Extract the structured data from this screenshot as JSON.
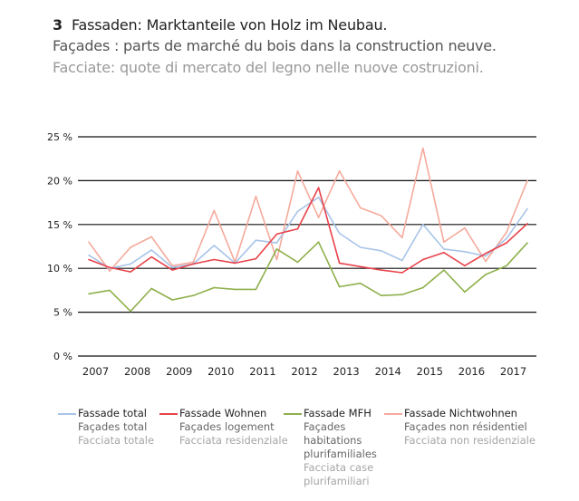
{
  "title": {
    "number": "3",
    "de": "Fassaden: Marktanteile von Holz im Neubau.",
    "fr": "Façades : parts de marché du bois dans la construction neuve.",
    "it": "Facciate: quote di mercato del legno nelle nuove costruzioni."
  },
  "chart_data": {
    "type": "line",
    "title": "Fassaden: Marktanteile von Holz im Neubau.",
    "xlabel": "",
    "ylabel": "",
    "x_tick_labels": [
      "2007",
      "2008",
      "2009",
      "2010",
      "2011",
      "2012",
      "2013",
      "2014",
      "2015",
      "2016",
      "2017"
    ],
    "x_note": "semiannual values, two per year (2007 H1 to 2017 H2)",
    "y_tick_labels": [
      "0 %",
      "5 %",
      "10 %",
      "15 %",
      "20 %",
      "25 %"
    ],
    "y_ticks": [
      0,
      5,
      10,
      15,
      20,
      25
    ],
    "ylim": [
      0,
      25
    ],
    "grid": true,
    "legend_position": "bottom",
    "series": [
      {
        "name": "Fassade total",
        "name_fr": "Façades total",
        "name_it": "Facciata totale",
        "color": "#a8c4e8",
        "values": [
          11.5,
          10.0,
          10.5,
          12.1,
          10.1,
          10.5,
          12.6,
          10.6,
          13.2,
          12.9,
          16.5,
          18.1,
          14.0,
          12.4,
          12.0,
          10.9,
          15.0,
          12.2,
          11.9,
          11.4,
          13.4,
          16.8
        ]
      },
      {
        "name": "Fassade Wohnen",
        "name_fr": "Façades logement",
        "name_it": "Facciata residenziale",
        "color": "#e8424a",
        "values": [
          11.0,
          10.1,
          9.6,
          11.3,
          9.8,
          10.5,
          11.0,
          10.6,
          11.1,
          13.9,
          14.5,
          19.2,
          10.6,
          10.2,
          9.8,
          9.5,
          11.0,
          11.8,
          10.3,
          11.7,
          12.9,
          15.1
        ]
      },
      {
        "name": "Fassade MFH",
        "name_fr": "Façades habitations plurifamiliales",
        "name_it": "Facciata case plurifamiliari",
        "color": "#8fb04c",
        "values": [
          7.1,
          7.5,
          5.1,
          7.7,
          6.4,
          6.9,
          7.8,
          7.6,
          7.6,
          12.2,
          10.7,
          13.0,
          7.9,
          8.3,
          6.9,
          7.0,
          7.8,
          9.8,
          7.3,
          9.3,
          10.3,
          12.9
        ]
      },
      {
        "name": "Fassade Nichtwohnen",
        "name_fr": "Façades non résidentiel",
        "name_it": "Facciata non residenziale",
        "color": "#f5aa9c",
        "values": [
          13.0,
          9.7,
          12.4,
          13.6,
          10.3,
          10.7,
          16.6,
          10.7,
          18.2,
          11.0,
          21.1,
          15.8,
          21.1,
          16.9,
          16.0,
          13.5,
          23.7,
          13.0,
          14.6,
          10.8,
          14.1,
          20.0
        ]
      }
    ]
  },
  "legend": [
    {
      "de": "Fassade total",
      "fr": "Façades total",
      "it": "Facciata totale"
    },
    {
      "de": "Fassade Wohnen",
      "fr": "Façades logement",
      "it": "Facciata residenziale"
    },
    {
      "de": "Fassade MFH",
      "fr": "Façades habitations plurifamiliales",
      "it": "Facciata case plurifamiliari"
    },
    {
      "de": "Fassade Nichtwohnen",
      "fr": "Façades non résidentiel",
      "it": "Facciata non residenziale"
    }
  ]
}
